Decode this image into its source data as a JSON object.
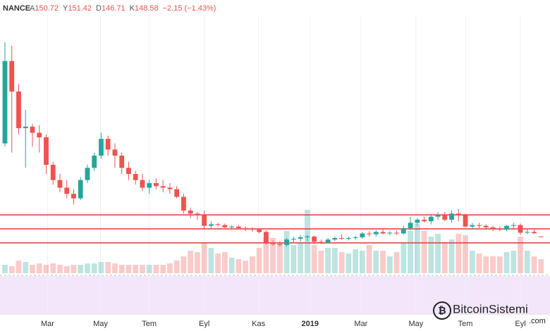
{
  "chart_data": {
    "type": "candlestick",
    "exchange": "NANCE",
    "ohlc_labels": [
      "A",
      "Y",
      "D",
      "K"
    ],
    "change": "−2.15 (−1.43%)",
    "open": [
      760,
      1300,
      1100,
      860,
      870,
      830,
      800,
      620,
      520,
      470,
      430,
      400,
      520,
      600,
      680,
      790,
      720,
      680,
      600,
      560,
      520,
      470,
      500,
      480,
      470,
      460,
      410,
      320,
      300,
      290,
      220,
      230,
      225,
      210,
      215,
      205,
      200,
      195,
      180,
      110,
      100,
      95,
      130,
      135,
      145,
      150,
      115,
      110,
      130,
      140,
      135,
      140,
      145,
      170,
      165,
      180,
      170,
      175,
      170,
      205,
      240,
      260,
      250,
      280,
      290,
      260,
      300,
      290,
      215,
      225,
      220,
      210,
      200,
      195,
      220,
      225,
      175,
      180,
      150.72
    ],
    "high": [
      1423,
      1400,
      1150,
      980,
      890,
      880,
      820,
      640,
      560,
      520,
      460,
      540,
      620,
      700,
      830,
      810,
      760,
      700,
      640,
      580,
      560,
      520,
      530,
      520,
      500,
      480,
      430,
      340,
      310,
      320,
      250,
      240,
      235,
      225,
      225,
      215,
      210,
      205,
      190,
      125,
      120,
      140,
      150,
      160,
      160,
      155,
      130,
      140,
      150,
      165,
      150,
      155,
      180,
      185,
      190,
      200,
      185,
      190,
      220,
      280,
      270,
      280,
      290,
      310,
      310,
      320,
      330,
      300,
      240,
      240,
      230,
      220,
      215,
      225,
      240,
      235,
      200,
      195,
      151.42
    ],
    "low": [
      740,
      700,
      820,
      600,
      740,
      700,
      560,
      490,
      440,
      400,
      360,
      390,
      500,
      580,
      660,
      680,
      600,
      560,
      520,
      490,
      450,
      430,
      460,
      440,
      430,
      400,
      300,
      270,
      260,
      200,
      200,
      215,
      205,
      195,
      200,
      185,
      180,
      170,
      95,
      90,
      85,
      83,
      110,
      115,
      120,
      100,
      100,
      105,
      120,
      130,
      125,
      130,
      135,
      150,
      150,
      165,
      160,
      160,
      165,
      190,
      220,
      240,
      230,
      260,
      250,
      240,
      250,
      210,
      200,
      205,
      195,
      185,
      185,
      185,
      200,
      160,
      165,
      165,
      146.71
    ],
    "close": [
      1300,
      1100,
      860,
      870,
      830,
      800,
      620,
      520,
      470,
      430,
      400,
      520,
      600,
      680,
      790,
      720,
      680,
      600,
      560,
      520,
      470,
      500,
      480,
      470,
      460,
      410,
      320,
      300,
      290,
      220,
      230,
      225,
      210,
      215,
      205,
      200,
      195,
      180,
      110,
      100,
      95,
      130,
      135,
      145,
      150,
      115,
      110,
      130,
      140,
      135,
      140,
      145,
      170,
      165,
      180,
      170,
      175,
      170,
      205,
      240,
      260,
      250,
      280,
      290,
      260,
      300,
      290,
      215,
      225,
      220,
      210,
      200,
      195,
      220,
      225,
      175,
      180,
      172,
      148.58
    ],
    "volume": [
      6,
      5,
      9,
      8,
      6,
      7,
      6,
      7,
      6,
      5,
      6,
      6,
      7,
      7,
      8,
      8,
      7,
      6,
      6,
      6,
      6,
      6,
      6,
      6,
      7,
      9,
      12,
      16,
      15,
      22,
      18,
      14,
      15,
      11,
      10,
      9,
      12,
      18,
      26,
      25,
      22,
      30,
      20,
      22,
      45,
      20,
      16,
      18,
      18,
      15,
      14,
      17,
      16,
      20,
      16,
      16,
      12,
      15,
      22,
      30,
      35,
      30,
      26,
      28,
      22,
      24,
      28,
      27,
      16,
      14,
      12,
      12,
      12,
      15,
      16,
      26,
      16,
      12,
      10
    ],
    "ylim": [
      -100,
      1700
    ],
    "vlim": [
      0,
      100
    ],
    "xticks": [
      {
        "value": 6.2,
        "label": "Mar"
      },
      {
        "value": 13.9,
        "label": "May"
      },
      {
        "value": 21,
        "label": "Tem"
      },
      {
        "value": 29,
        "label": "Eyl"
      },
      {
        "value": 36.9,
        "label": "Kas"
      },
      {
        "value": 44.4,
        "label": "2019"
      },
      {
        "value": 51.8,
        "label": "Mar"
      },
      {
        "value": 59.8,
        "label": "May"
      },
      {
        "value": 67,
        "label": "Tem"
      },
      {
        "value": 75,
        "label": "Eyl"
      }
    ],
    "hlines": [
      292,
      200,
      108
    ],
    "hline_color": "#e53935",
    "up_color": "#26a69a",
    "down_color": "#ef5350",
    "grid": true
  },
  "watermark": {
    "name": "BitcoinSistemi",
    "domain": ".com"
  }
}
